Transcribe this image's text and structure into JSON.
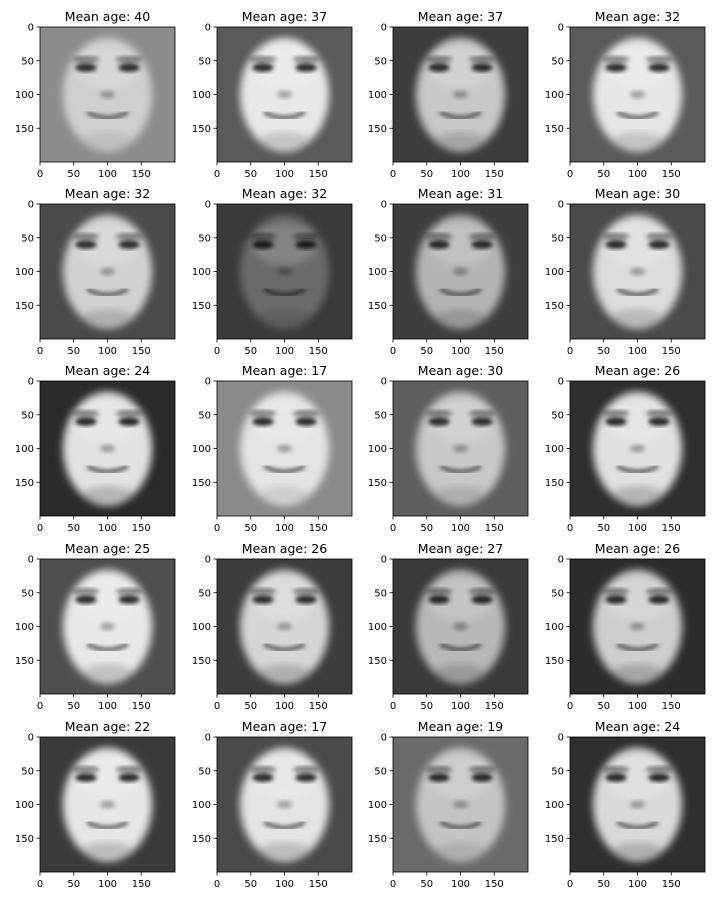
{
  "chart_data": [
    {
      "type": "image",
      "title": "Mean age: 40",
      "mean_age": 40,
      "x_ticks": [
        "0",
        "50",
        "100",
        "150"
      ],
      "y_ticks": [
        "0",
        "50",
        "100",
        "150"
      ],
      "xlim": [
        0,
        200
      ],
      "ylim": [
        200,
        0
      ],
      "tone": {
        "skin": "#cfcfcf",
        "bg": "#8c8c8c",
        "feature": "#2a2a2a"
      }
    },
    {
      "type": "image",
      "title": "Mean age: 37",
      "mean_age": 37,
      "x_ticks": [
        "0",
        "50",
        "100",
        "150"
      ],
      "y_ticks": [
        "0",
        "50",
        "100",
        "150"
      ],
      "xlim": [
        0,
        200
      ],
      "ylim": [
        200,
        0
      ],
      "tone": {
        "skin": "#e8e8e8",
        "bg": "#5a5a5a",
        "feature": "#2a2a2a"
      }
    },
    {
      "type": "image",
      "title": "Mean age: 37",
      "mean_age": 37,
      "x_ticks": [
        "0",
        "50",
        "100",
        "150"
      ],
      "y_ticks": [
        "0",
        "50",
        "100",
        "150"
      ],
      "xlim": [
        0,
        200
      ],
      "ylim": [
        200,
        0
      ],
      "tone": {
        "skin": "#c8c8c8",
        "bg": "#3c3c3c",
        "feature": "#252525"
      }
    },
    {
      "type": "image",
      "title": "Mean age: 32",
      "mean_age": 32,
      "x_ticks": [
        "0",
        "50",
        "100",
        "150"
      ],
      "y_ticks": [
        "0",
        "50",
        "100",
        "150"
      ],
      "xlim": [
        0,
        200
      ],
      "ylim": [
        200,
        0
      ],
      "tone": {
        "skin": "#e6e6e6",
        "bg": "#5a5a5a",
        "feature": "#2c2c2c"
      }
    },
    {
      "type": "image",
      "title": "Mean age: 32",
      "mean_age": 32,
      "x_ticks": [
        "0",
        "50",
        "100",
        "150"
      ],
      "y_ticks": [
        "0",
        "50",
        "100",
        "150"
      ],
      "xlim": [
        0,
        200
      ],
      "ylim": [
        200,
        0
      ],
      "tone": {
        "skin": "#d2d2d2",
        "bg": "#4a4a4a",
        "feature": "#2a2a2a"
      }
    },
    {
      "type": "image",
      "title": "Mean age: 32",
      "mean_age": 32,
      "x_ticks": [
        "0",
        "50",
        "100",
        "150"
      ],
      "y_ticks": [
        "0",
        "50",
        "100",
        "150"
      ],
      "xlim": [
        0,
        200
      ],
      "ylim": [
        200,
        0
      ],
      "tone": {
        "skin": "#6a6a6a",
        "bg": "#3a3a3a",
        "feature": "#141414"
      }
    },
    {
      "type": "image",
      "title": "Mean age: 31",
      "mean_age": 31,
      "x_ticks": [
        "0",
        "50",
        "100",
        "150"
      ],
      "y_ticks": [
        "0",
        "50",
        "100",
        "150"
      ],
      "xlim": [
        0,
        200
      ],
      "ylim": [
        200,
        0
      ],
      "tone": {
        "skin": "#b4b4b4",
        "bg": "#3e3e3e",
        "feature": "#222222"
      }
    },
    {
      "type": "image",
      "title": "Mean age: 30",
      "mean_age": 30,
      "x_ticks": [
        "0",
        "50",
        "100",
        "150"
      ],
      "y_ticks": [
        "0",
        "50",
        "100",
        "150"
      ],
      "xlim": [
        0,
        200
      ],
      "ylim": [
        200,
        0
      ],
      "tone": {
        "skin": "#dcdcdc",
        "bg": "#4a4a4a",
        "feature": "#282828"
      }
    },
    {
      "type": "image",
      "title": "Mean age: 24",
      "mean_age": 24,
      "x_ticks": [
        "0",
        "50",
        "100",
        "150"
      ],
      "y_ticks": [
        "0",
        "50",
        "100",
        "150"
      ],
      "xlim": [
        0,
        200
      ],
      "ylim": [
        200,
        0
      ],
      "tone": {
        "skin": "#e2e2e2",
        "bg": "#2a2a2a",
        "feature": "#262626"
      }
    },
    {
      "type": "image",
      "title": "Mean age: 17",
      "mean_age": 17,
      "x_ticks": [
        "0",
        "50",
        "100",
        "150"
      ],
      "y_ticks": [
        "0",
        "50",
        "100",
        "150"
      ],
      "xlim": [
        0,
        200
      ],
      "ylim": [
        200,
        0
      ],
      "tone": {
        "skin": "#e4e4e4",
        "bg": "#8a8a8a",
        "feature": "#2a2a2a"
      }
    },
    {
      "type": "image",
      "title": "Mean age: 30",
      "mean_age": 30,
      "x_ticks": [
        "0",
        "50",
        "100",
        "150"
      ],
      "y_ticks": [
        "0",
        "50",
        "100",
        "150"
      ],
      "xlim": [
        0,
        200
      ],
      "ylim": [
        200,
        0
      ],
      "tone": {
        "skin": "#c8c8c8",
        "bg": "#5e5e5e",
        "feature": "#2a2a2a"
      }
    },
    {
      "type": "image",
      "title": "Mean age: 26",
      "mean_age": 26,
      "x_ticks": [
        "0",
        "50",
        "100",
        "150"
      ],
      "y_ticks": [
        "0",
        "50",
        "100",
        "150"
      ],
      "xlim": [
        0,
        200
      ],
      "ylim": [
        200,
        0
      ],
      "tone": {
        "skin": "#e0e0e0",
        "bg": "#2e2e2e",
        "feature": "#282828"
      }
    },
    {
      "type": "image",
      "title": "Mean age: 25",
      "mean_age": 25,
      "x_ticks": [
        "0",
        "50",
        "100",
        "150"
      ],
      "y_ticks": [
        "0",
        "50",
        "100",
        "150"
      ],
      "xlim": [
        0,
        200
      ],
      "ylim": [
        200,
        0
      ],
      "tone": {
        "skin": "#e8e8e8",
        "bg": "#4e4e4e",
        "feature": "#2a2a2a"
      }
    },
    {
      "type": "image",
      "title": "Mean age: 26",
      "mean_age": 26,
      "x_ticks": [
        "0",
        "50",
        "100",
        "150"
      ],
      "y_ticks": [
        "0",
        "50",
        "100",
        "150"
      ],
      "xlim": [
        0,
        200
      ],
      "ylim": [
        200,
        0
      ],
      "tone": {
        "skin": "#d6d6d6",
        "bg": "#3c3c3c",
        "feature": "#2a2a2a"
      }
    },
    {
      "type": "image",
      "title": "Mean age: 27",
      "mean_age": 27,
      "x_ticks": [
        "0",
        "50",
        "100",
        "150"
      ],
      "y_ticks": [
        "0",
        "50",
        "100",
        "150"
      ],
      "xlim": [
        0,
        200
      ],
      "ylim": [
        200,
        0
      ],
      "tone": {
        "skin": "#b8b8b8",
        "bg": "#3a3a3a",
        "feature": "#222222"
      }
    },
    {
      "type": "image",
      "title": "Mean age: 26",
      "mean_age": 26,
      "x_ticks": [
        "0",
        "50",
        "100",
        "150"
      ],
      "y_ticks": [
        "0",
        "50",
        "100",
        "150"
      ],
      "xlim": [
        0,
        200
      ],
      "ylim": [
        200,
        0
      ],
      "tone": {
        "skin": "#cecece",
        "bg": "#2c2c2c",
        "feature": "#262626"
      }
    },
    {
      "type": "image",
      "title": "Mean age: 22",
      "mean_age": 22,
      "x_ticks": [
        "0",
        "50",
        "100",
        "150"
      ],
      "y_ticks": [
        "0",
        "50",
        "100",
        "150"
      ],
      "xlim": [
        0,
        200
      ],
      "ylim": [
        200,
        0
      ],
      "tone": {
        "skin": "#e6e6e6",
        "bg": "#3a3a3a",
        "feature": "#2a2a2a"
      }
    },
    {
      "type": "image",
      "title": "Mean age: 17",
      "mean_age": 17,
      "x_ticks": [
        "0",
        "50",
        "100",
        "150"
      ],
      "y_ticks": [
        "0",
        "50",
        "100",
        "150"
      ],
      "xlim": [
        0,
        200
      ],
      "ylim": [
        200,
        0
      ],
      "tone": {
        "skin": "#e4e4e4",
        "bg": "#4a4a4a",
        "feature": "#2c2c2c"
      }
    },
    {
      "type": "image",
      "title": "Mean age: 19",
      "mean_age": 19,
      "x_ticks": [
        "0",
        "50",
        "100",
        "150"
      ],
      "y_ticks": [
        "0",
        "50",
        "100",
        "150"
      ],
      "xlim": [
        0,
        200
      ],
      "ylim": [
        200,
        0
      ],
      "tone": {
        "skin": "#c4c4c4",
        "bg": "#6a6a6a",
        "feature": "#262626"
      }
    },
    {
      "type": "image",
      "title": "Mean age: 24",
      "mean_age": 24,
      "x_ticks": [
        "0",
        "50",
        "100",
        "150"
      ],
      "y_ticks": [
        "0",
        "50",
        "100",
        "150"
      ],
      "xlim": [
        0,
        200
      ],
      "ylim": [
        200,
        0
      ],
      "tone": {
        "skin": "#dadada",
        "bg": "#2e2e2e",
        "feature": "#262626"
      }
    }
  ]
}
